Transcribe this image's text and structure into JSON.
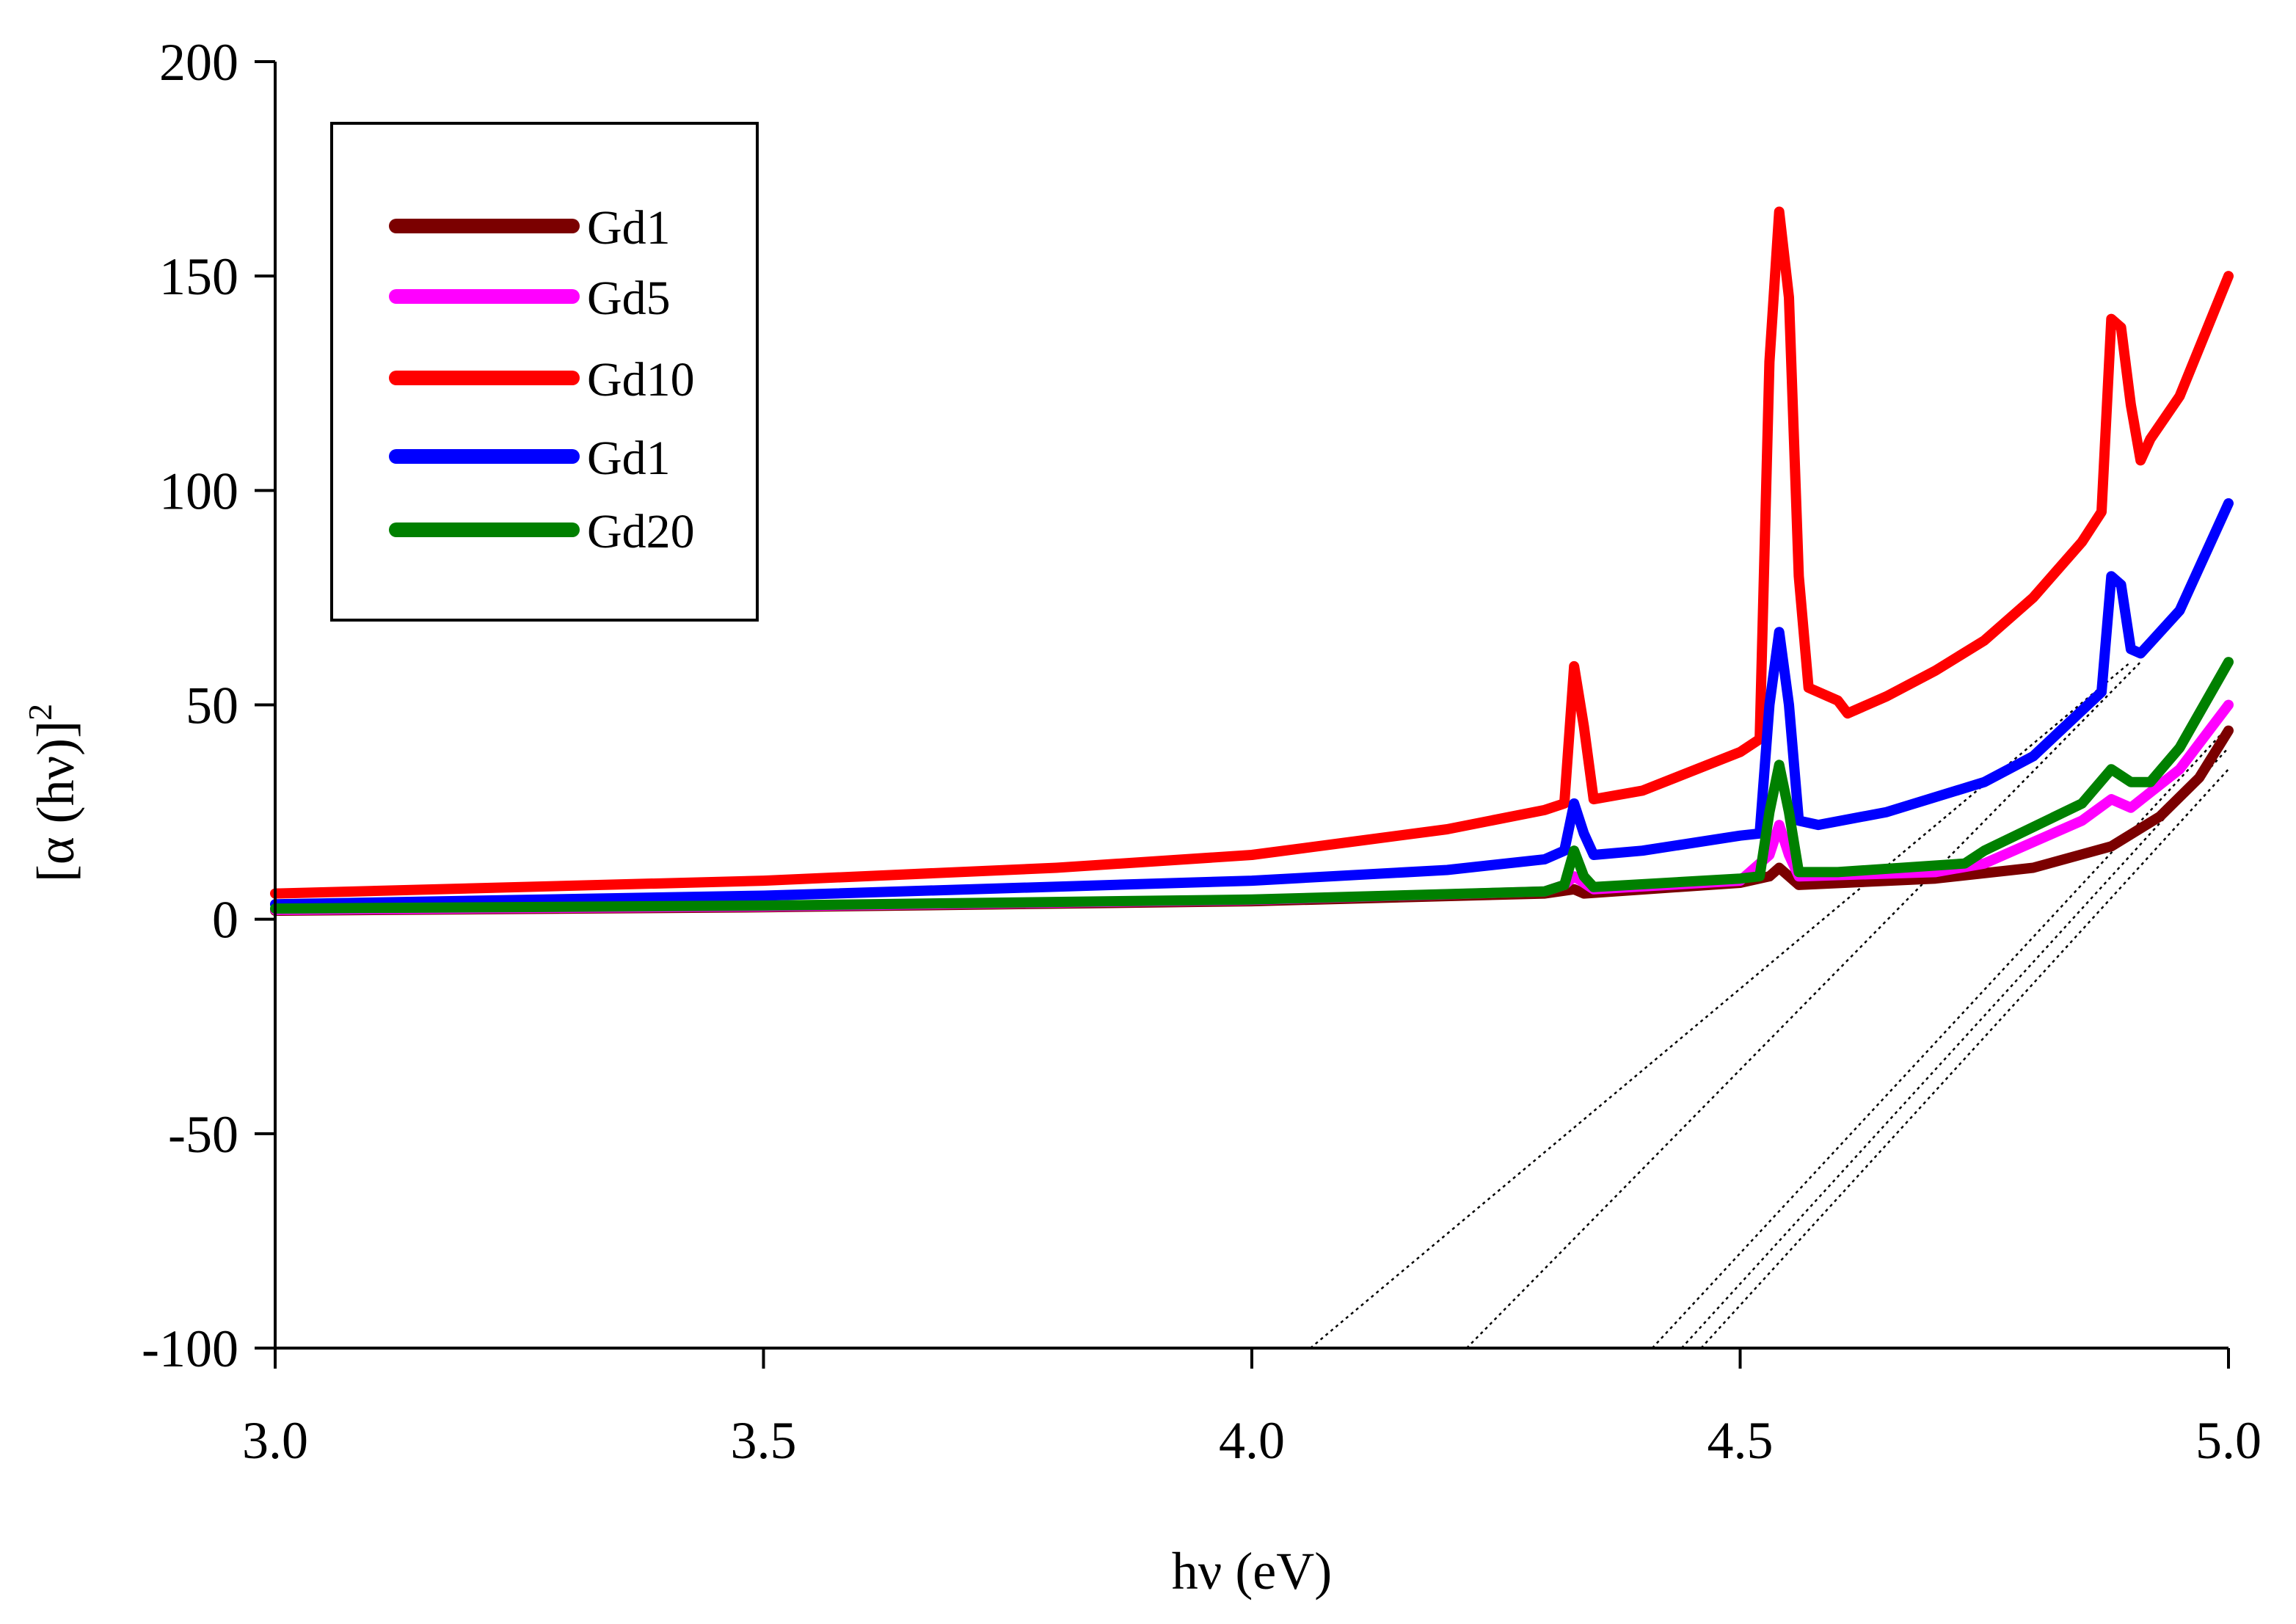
{
  "chart_data": {
    "type": "line",
    "title": "",
    "xlabel": "hν (eV)",
    "ylabel": "[α (hν)]",
    "ylabel_superscript": "2",
    "xlim": [
      3.0,
      5.0
    ],
    "ylim": [
      -100,
      200
    ],
    "xticks": [
      "3.0",
      "3.5",
      "4.0",
      "4.5",
      "5.0"
    ],
    "yticks": [
      "200",
      "150",
      "100",
      "50",
      "0",
      "-50",
      "-100"
    ],
    "legend_position": "top-left",
    "series": [
      {
        "name": "Gd1",
        "color": "#7b0000",
        "points": [
          [
            3.0,
            2
          ],
          [
            3.5,
            2.8
          ],
          [
            4.0,
            4.2
          ],
          [
            4.3,
            6
          ],
          [
            4.33,
            7
          ],
          [
            4.34,
            6
          ],
          [
            4.5,
            8.5
          ],
          [
            4.53,
            10
          ],
          [
            4.54,
            12
          ],
          [
            4.56,
            8
          ],
          [
            4.7,
            9.5
          ],
          [
            4.8,
            12
          ],
          [
            4.88,
            17
          ],
          [
            4.93,
            24
          ],
          [
            4.97,
            33
          ],
          [
            5.0,
            44
          ]
        ]
      },
      {
        "name": "Gd5",
        "color": "#ff00ff",
        "points": [
          [
            3.0,
            2.2
          ],
          [
            3.5,
            3
          ],
          [
            4.0,
            4.5
          ],
          [
            4.3,
            6.5
          ],
          [
            4.32,
            8
          ],
          [
            4.33,
            10
          ],
          [
            4.35,
            7
          ],
          [
            4.5,
            9
          ],
          [
            4.53,
            15
          ],
          [
            4.54,
            22
          ],
          [
            4.55,
            15
          ],
          [
            4.56,
            10
          ],
          [
            4.7,
            11
          ],
          [
            4.75,
            13
          ],
          [
            4.85,
            23
          ],
          [
            4.88,
            28
          ],
          [
            4.9,
            26
          ],
          [
            4.95,
            35
          ],
          [
            5.0,
            50
          ]
        ]
      },
      {
        "name": "Gd10",
        "color": "#ff0000",
        "points": [
          [
            3.0,
            6
          ],
          [
            3.5,
            9
          ],
          [
            3.8,
            12
          ],
          [
            4.0,
            15
          ],
          [
            4.2,
            21
          ],
          [
            4.3,
            25.5
          ],
          [
            4.32,
            27
          ],
          [
            4.33,
            59
          ],
          [
            4.34,
            45
          ],
          [
            4.35,
            28
          ],
          [
            4.4,
            30
          ],
          [
            4.5,
            39
          ],
          [
            4.52,
            42
          ],
          [
            4.53,
            130
          ],
          [
            4.54,
            165
          ],
          [
            4.55,
            145
          ],
          [
            4.56,
            80
          ],
          [
            4.57,
            54
          ],
          [
            4.6,
            51
          ],
          [
            4.61,
            48
          ],
          [
            4.65,
            52
          ],
          [
            4.7,
            58
          ],
          [
            4.75,
            65
          ],
          [
            4.8,
            75
          ],
          [
            4.85,
            88
          ],
          [
            4.87,
            95
          ],
          [
            4.88,
            140
          ],
          [
            4.89,
            138
          ],
          [
            4.9,
            120
          ],
          [
            4.91,
            107
          ],
          [
            4.92,
            112
          ],
          [
            4.95,
            122
          ],
          [
            5.0,
            150
          ]
        ]
      },
      {
        "name": "Gd1",
        "color": "#0000ff",
        "points": [
          [
            3.0,
            3.5
          ],
          [
            3.5,
            5.5
          ],
          [
            4.0,
            9
          ],
          [
            4.2,
            11.5
          ],
          [
            4.3,
            14
          ],
          [
            4.32,
            16
          ],
          [
            4.33,
            27
          ],
          [
            4.34,
            20
          ],
          [
            4.35,
            15
          ],
          [
            4.4,
            16
          ],
          [
            4.5,
            19.5
          ],
          [
            4.52,
            20
          ],
          [
            4.53,
            50
          ],
          [
            4.54,
            67
          ],
          [
            4.55,
            50
          ],
          [
            4.56,
            23
          ],
          [
            4.58,
            22
          ],
          [
            4.65,
            25
          ],
          [
            4.75,
            32
          ],
          [
            4.8,
            38
          ],
          [
            4.87,
            53
          ],
          [
            4.88,
            80
          ],
          [
            4.89,
            78
          ],
          [
            4.9,
            63
          ],
          [
            4.91,
            62
          ],
          [
            4.95,
            72
          ],
          [
            5.0,
            97
          ]
        ]
      },
      {
        "name": "Gd20",
        "color": "#008000",
        "points": [
          [
            3.0,
            2.5
          ],
          [
            3.5,
            3.2
          ],
          [
            4.0,
            4.6
          ],
          [
            4.3,
            6.5
          ],
          [
            4.32,
            8
          ],
          [
            4.33,
            16
          ],
          [
            4.34,
            10
          ],
          [
            4.35,
            7.5
          ],
          [
            4.5,
            9.5
          ],
          [
            4.52,
            10
          ],
          [
            4.53,
            25
          ],
          [
            4.54,
            36
          ],
          [
            4.55,
            25
          ],
          [
            4.56,
            11
          ],
          [
            4.6,
            11
          ],
          [
            4.73,
            13
          ],
          [
            4.75,
            16
          ],
          [
            4.85,
            27
          ],
          [
            4.88,
            35
          ],
          [
            4.9,
            32
          ],
          [
            4.92,
            32
          ],
          [
            4.95,
            40
          ],
          [
            5.0,
            60
          ]
        ]
      }
    ],
    "tangent_lines": [
      [
        [
          4.06,
          -100
        ],
        [
          4.9,
          60
        ]
      ],
      [
        [
          4.22,
          -100
        ],
        [
          4.91,
          60
        ]
      ],
      [
        [
          4.41,
          -100
        ],
        [
          5.0,
          45
        ]
      ],
      [
        [
          4.44,
          -100
        ],
        [
          5.0,
          40
        ]
      ],
      [
        [
          4.46,
          -100
        ],
        [
          5.0,
          35
        ]
      ]
    ]
  }
}
